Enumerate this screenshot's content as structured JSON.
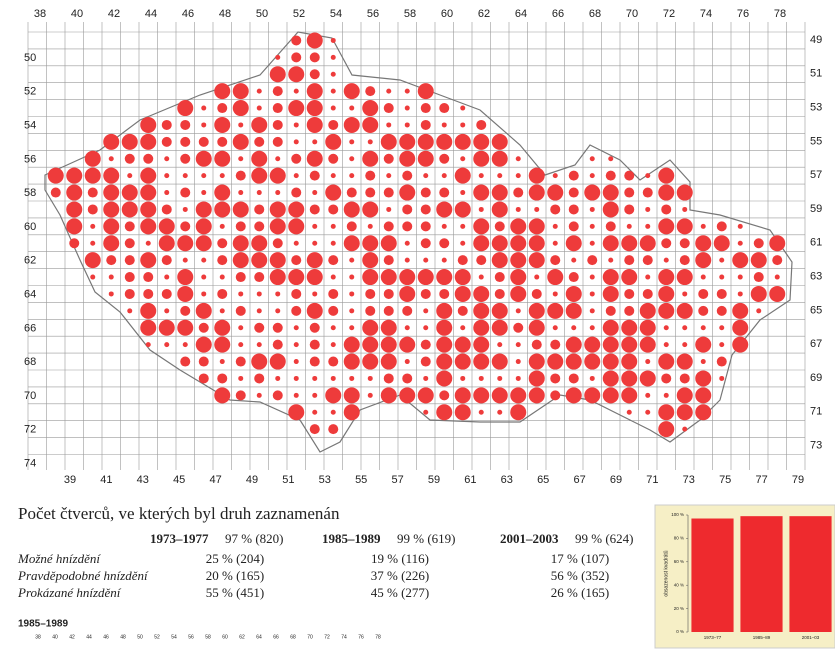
{
  "map": {
    "top_labels": [
      38,
      40,
      42,
      44,
      46,
      48,
      50,
      52,
      54,
      56,
      58,
      60,
      62,
      64,
      66,
      68,
      70,
      72,
      74,
      76,
      78
    ],
    "bottom_labels": [
      39,
      41,
      43,
      45,
      47,
      49,
      51,
      53,
      55,
      57,
      59,
      61,
      63,
      65,
      67,
      69,
      71,
      73,
      75,
      77,
      79
    ],
    "left_labels": [
      50,
      52,
      54,
      56,
      58,
      60,
      62,
      64,
      66,
      68,
      70,
      72,
      74
    ],
    "right_labels": [
      49,
      51,
      53,
      55,
      57,
      59,
      61,
      63,
      65,
      67,
      69,
      71,
      73
    ]
  },
  "summary": {
    "title": "Počet čtverců, ve kterých byl druh zaznamenán",
    "periods": [
      {
        "years": "1973–1977",
        "total": "97 % (820)"
      },
      {
        "years": "1985–1989",
        "total": "99 % (619)"
      },
      {
        "years": "2001–2003",
        "total": "99 % (624)"
      }
    ],
    "rows": [
      {
        "label": "Možné hnízdění",
        "values": [
          "25 % (204)",
          "19 % (116)",
          "17 % (107)"
        ]
      },
      {
        "label": "Pravděpodobné hnízdění",
        "values": [
          "20 % (165)",
          "37 % (226)",
          "56 % (352)"
        ]
      },
      {
        "label": "Prokázané hnízdění",
        "values": [
          "55 % (451)",
          "45 % (277)",
          "26 % (165)"
        ]
      }
    ]
  },
  "mini_map": {
    "title": "1985–1989",
    "labels": [
      38,
      40,
      42,
      44,
      46,
      48,
      50,
      52,
      54,
      56,
      58,
      60,
      62,
      64,
      66,
      68,
      70,
      72,
      74,
      76,
      78
    ]
  },
  "chart_data": {
    "type": "bar",
    "y_label": "obsazenost kvadrátů",
    "categories": [
      "1973–77",
      "1985–89",
      "2001–03"
    ],
    "values": [
      97,
      99,
      99
    ],
    "color": "#ee2a2e",
    "ylim": [
      0,
      100
    ],
    "yticks": [
      {
        "value": 0,
        "label": "0 %"
      },
      {
        "value": 20,
        "label": "20 %"
      },
      {
        "value": 40,
        "label": "40 %"
      },
      {
        "value": 60,
        "label": "60 %"
      },
      {
        "value": 80,
        "label": "80 %"
      },
      {
        "value": 100,
        "label": "100 %"
      }
    ]
  }
}
